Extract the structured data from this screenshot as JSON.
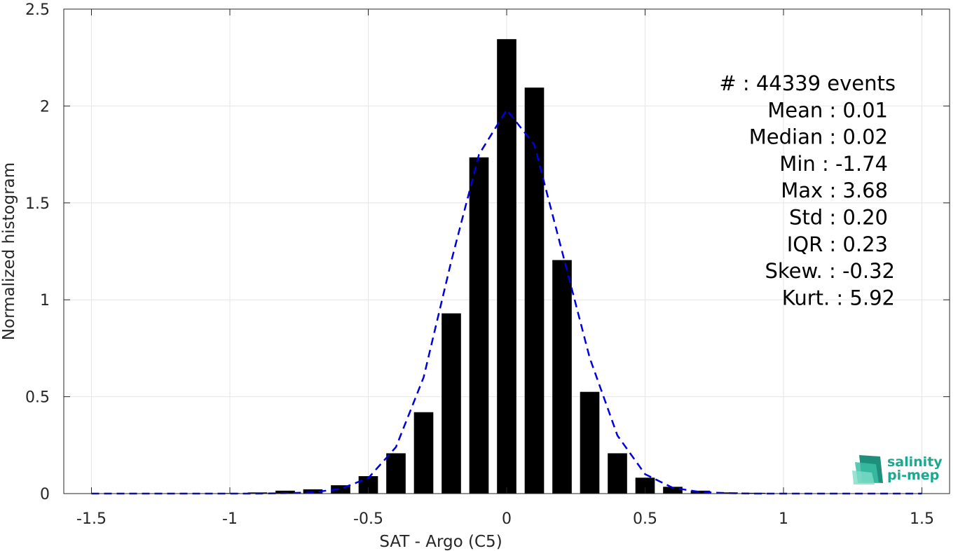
{
  "chart_data": {
    "type": "bar",
    "xlabel": "SAT - Argo (C5)",
    "ylabel": "Normalized histogram",
    "xlim": [
      -1.6,
      1.6
    ],
    "ylim": [
      0,
      2.5
    ],
    "grid": true,
    "xticks": [
      -1.5,
      -1,
      -0.5,
      0,
      0.5,
      1,
      1.5
    ],
    "xtick_labels": [
      "-1.5",
      "-1",
      "-0.5",
      "0",
      "0.5",
      "1",
      "1.5"
    ],
    "yticks": [
      0,
      0.5,
      1,
      1.5,
      2,
      2.5
    ],
    "ytick_labels": [
      "0",
      "0.5",
      "1",
      "1.5",
      "2",
      "2.5"
    ],
    "bars": {
      "color": "#000000",
      "x": [
        -1.5,
        -1.4,
        -1.3,
        -1.2,
        -1.1,
        -1.0,
        -0.9,
        -0.8,
        -0.7,
        -0.6,
        -0.5,
        -0.4,
        -0.3,
        -0.2,
        -0.1,
        0.0,
        0.1,
        0.2,
        0.3,
        0.4,
        0.5,
        0.6,
        0.7,
        0.8,
        0.9,
        1.0,
        1.1,
        1.2,
        1.3,
        1.4,
        1.5
      ],
      "values": [
        0.001,
        0.001,
        0.001,
        0.002,
        0.002,
        0.003,
        0.006,
        0.015,
        0.022,
        0.043,
        0.09,
        0.208,
        0.42,
        0.93,
        1.735,
        2.345,
        2.095,
        1.205,
        0.525,
        0.208,
        0.082,
        0.035,
        0.015,
        0.006,
        0.004,
        0.002,
        0.001,
        0.001,
        0.001,
        0.001,
        0.001
      ]
    },
    "fit_curve": {
      "style": "dashed",
      "color": "#0000dd",
      "x": [
        -1.5,
        -1.4,
        -1.3,
        -1.2,
        -1.1,
        -1.0,
        -0.9,
        -0.8,
        -0.7,
        -0.6,
        -0.5,
        -0.4,
        -0.3,
        -0.2,
        -0.1,
        0.0,
        0.1,
        0.2,
        0.3,
        0.4,
        0.5,
        0.6,
        0.7,
        0.8,
        0.9,
        1.0,
        1.1,
        1.2,
        1.3,
        1.4,
        1.5
      ],
      "y": [
        0.0,
        0.0,
        0.0,
        0.0,
        0.0,
        0.0,
        0.0,
        0.002,
        0.006,
        0.025,
        0.08,
        0.24,
        0.6,
        1.2,
        1.75,
        1.98,
        1.8,
        1.25,
        0.7,
        0.3,
        0.1,
        0.03,
        0.008,
        0.002,
        0.0,
        0.0,
        0.0,
        0.0,
        0.0,
        0.0,
        0.0
      ]
    },
    "annotations": [
      "#  : 44339 events",
      "Mean : 0.01",
      "Median : 0.02",
      "Min : -1.74",
      "Max : 3.68",
      "Std : 0.20",
      "IQR : 0.23",
      "Skew. : -0.32",
      "Kurt. : 5.92"
    ]
  },
  "logo": {
    "line1": "salinity",
    "line2": "pi-mep",
    "color": "#1aa88e"
  }
}
